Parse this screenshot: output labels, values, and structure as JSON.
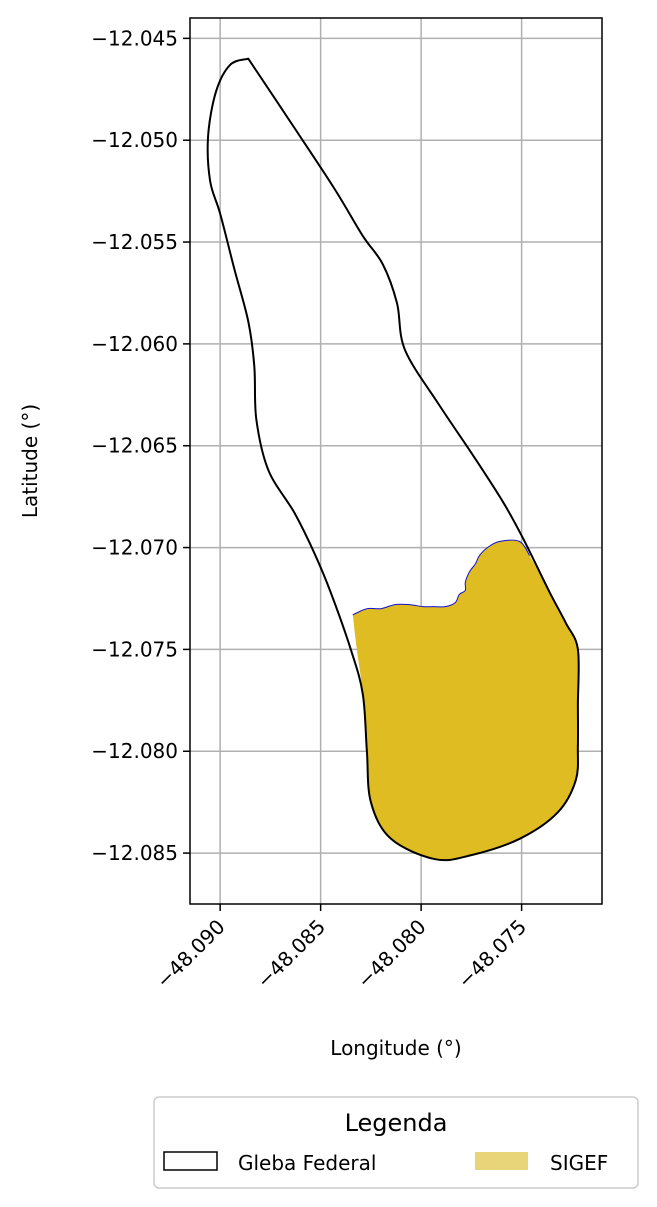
{
  "chart_data": {
    "type": "map",
    "xlabel": "Longitude (°)",
    "ylabel": "Latitude (°)",
    "xlim": [
      -48.0915,
      -48.071
    ],
    "ylim": [
      -12.0875,
      -12.044
    ],
    "x_ticks": [
      -48.09,
      -48.085,
      -48.08,
      -48.075
    ],
    "x_tick_labels": [
      "−48.090",
      "−48.085",
      "−48.080",
      "−48.075"
    ],
    "y_ticks": [
      -12.045,
      -12.05,
      -12.055,
      -12.06,
      -12.065,
      -12.07,
      -12.075,
      -12.08,
      -12.085
    ],
    "y_tick_labels": [
      "−12.045",
      "−12.050",
      "−12.055",
      "−12.060",
      "−12.065",
      "−12.070",
      "−12.075",
      "−12.080",
      "−12.085"
    ],
    "grid": true,
    "legend": {
      "title": "Legenda",
      "placement": "bottom-center",
      "entries": [
        {
          "label": "Gleba Federal",
          "style": "outline",
          "color": "#000000"
        },
        {
          "label": "SIGEF",
          "style": "fill",
          "color": "#e8d57a"
        }
      ]
    },
    "series": [
      {
        "name": "Gleba Federal",
        "kind": "polygon-outline",
        "stroke": "#000000",
        "points": [
          [
            -48.0886,
            -12.046
          ],
          [
            -48.0863,
            -12.0494
          ],
          [
            -48.0843,
            -12.0524
          ],
          [
            -48.0829,
            -12.0547
          ],
          [
            -48.0819,
            -12.0561
          ],
          [
            -48.0812,
            -12.058
          ],
          [
            -48.0808,
            -12.0603
          ],
          [
            -48.0791,
            -12.063
          ],
          [
            -48.0774,
            -12.0655
          ],
          [
            -48.0759,
            -12.0678
          ],
          [
            -48.0749,
            -12.0696
          ],
          [
            -48.0736,
            -12.0722
          ],
          [
            -48.0728,
            -12.0737
          ],
          [
            -48.0722,
            -12.075
          ],
          [
            -48.0722,
            -12.0777
          ],
          [
            -48.0722,
            -12.0797
          ],
          [
            -48.0723,
            -12.0814
          ],
          [
            -48.0732,
            -12.083
          ],
          [
            -48.0751,
            -12.0843
          ],
          [
            -48.0775,
            -12.0851
          ],
          [
            -48.0793,
            -12.0853
          ],
          [
            -48.0815,
            -12.0843
          ],
          [
            -48.0825,
            -12.0825
          ],
          [
            -48.0827,
            -12.08
          ],
          [
            -48.0829,
            -12.0772
          ],
          [
            -48.0835,
            -12.075
          ],
          [
            -48.0845,
            -12.0722
          ],
          [
            -48.0853,
            -12.0703
          ],
          [
            -48.0863,
            -12.0683
          ],
          [
            -48.0876,
            -12.0662
          ],
          [
            -48.0882,
            -12.0637
          ],
          [
            -48.0883,
            -12.0611
          ],
          [
            -48.0886,
            -12.0589
          ],
          [
            -48.0893,
            -12.0563
          ],
          [
            -48.09,
            -12.0536
          ],
          [
            -48.0905,
            -12.052
          ],
          [
            -48.0906,
            -12.0498
          ],
          [
            -48.0902,
            -12.0476
          ],
          [
            -48.0895,
            -12.0463
          ],
          [
            -48.0886,
            -12.046
          ]
        ]
      },
      {
        "name": "SIGEF",
        "kind": "polygon-fill",
        "fill": "#dfbc22",
        "edge_top": "#1010d0",
        "edge_outer": "#000000",
        "points": [
          [
            -48.0834,
            -12.0733
          ],
          [
            -48.0827,
            -12.073
          ],
          [
            -48.082,
            -12.073
          ],
          [
            -48.0813,
            -12.0728
          ],
          [
            -48.0806,
            -12.0728
          ],
          [
            -48.0799,
            -12.0729
          ],
          [
            -48.0794,
            -12.0729
          ],
          [
            -48.0788,
            -12.0729
          ],
          [
            -48.0783,
            -12.0727
          ],
          [
            -48.0781,
            -12.0723
          ],
          [
            -48.0778,
            -12.0721
          ],
          [
            -48.0778,
            -12.0717
          ],
          [
            -48.0776,
            -12.0712
          ],
          [
            -48.0773,
            -12.0708
          ],
          [
            -48.0771,
            -12.0704
          ],
          [
            -48.0767,
            -12.07
          ],
          [
            -48.0761,
            -12.0697
          ],
          [
            -48.0751,
            -12.0697
          ],
          [
            -48.0746,
            -12.0704
          ],
          [
            -48.0736,
            -12.0722
          ],
          [
            -48.0728,
            -12.0737
          ],
          [
            -48.0722,
            -12.075
          ],
          [
            -48.0722,
            -12.0777
          ],
          [
            -48.0722,
            -12.0797
          ],
          [
            -48.0723,
            -12.0814
          ],
          [
            -48.0732,
            -12.083
          ],
          [
            -48.0751,
            -12.0843
          ],
          [
            -48.0775,
            -12.0851
          ],
          [
            -48.0793,
            -12.0853
          ],
          [
            -48.0815,
            -12.0843
          ],
          [
            -48.0825,
            -12.0825
          ],
          [
            -48.0827,
            -12.08
          ],
          [
            -48.0829,
            -12.0772
          ],
          [
            -48.0832,
            -12.075
          ],
          [
            -48.0834,
            -12.0733
          ]
        ],
        "top_edge_count": 19
      }
    ]
  }
}
